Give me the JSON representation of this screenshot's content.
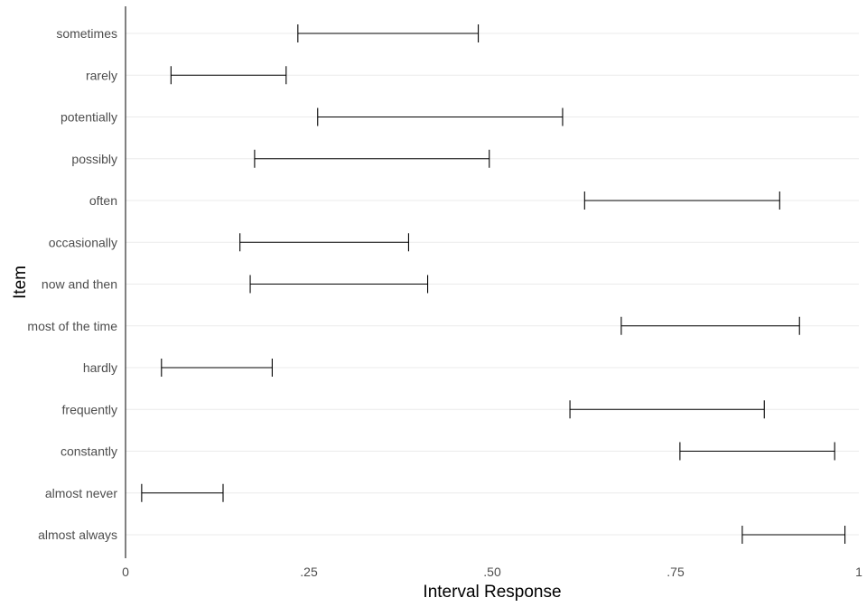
{
  "chart_data": {
    "type": "errorbar",
    "xlabel": "Interval Response",
    "ylabel": "Item",
    "xlim": [
      0,
      1
    ],
    "xticks": [
      {
        "value": 0,
        "label": "0"
      },
      {
        "value": 0.25,
        "label": ".25"
      },
      {
        "value": 0.5,
        "label": ".50"
      },
      {
        "value": 0.75,
        "label": ".75"
      },
      {
        "value": 1,
        "label": "1"
      }
    ],
    "grid": "horizontal",
    "series": [
      {
        "values": [
          {
            "item": "sometimes",
            "low": 0.235,
            "high": 0.481
          },
          {
            "item": "rarely",
            "low": 0.062,
            "high": 0.219
          },
          {
            "item": "potentially",
            "low": 0.262,
            "high": 0.596
          },
          {
            "item": "possibly",
            "low": 0.176,
            "high": 0.496
          },
          {
            "item": "often",
            "low": 0.626,
            "high": 0.892
          },
          {
            "item": "occasionally",
            "low": 0.156,
            "high": 0.386
          },
          {
            "item": "now and then",
            "low": 0.17,
            "high": 0.412
          },
          {
            "item": "most of the time",
            "low": 0.676,
            "high": 0.919
          },
          {
            "item": "hardly",
            "low": 0.049,
            "high": 0.2
          },
          {
            "item": "frequently",
            "low": 0.606,
            "high": 0.871
          },
          {
            "item": "constantly",
            "low": 0.756,
            "high": 0.967
          },
          {
            "item": "almost never",
            "low": 0.022,
            "high": 0.133
          },
          {
            "item": "almost always",
            "low": 0.841,
            "high": 0.981
          }
        ]
      }
    ],
    "colors": {
      "interval": "#000000",
      "grid": "#ebebeb",
      "tick_text": "#4d4d4d",
      "axis": "#000000"
    }
  }
}
